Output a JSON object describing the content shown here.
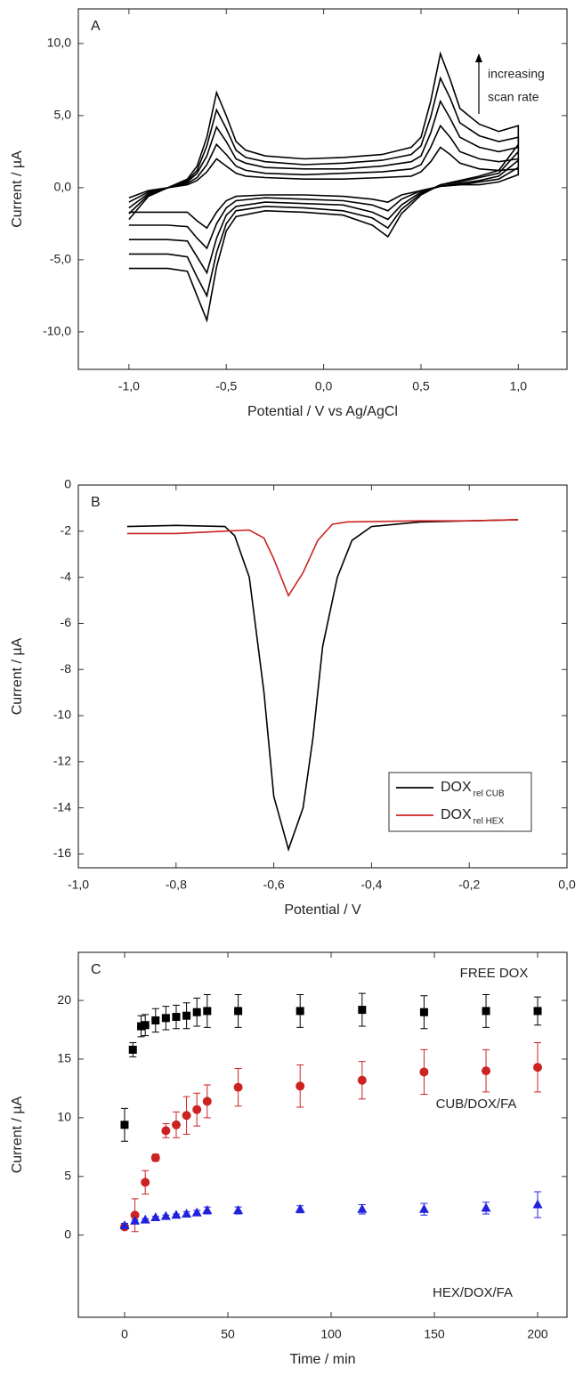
{
  "chart_data": [
    {
      "type": "line",
      "label": "A",
      "xlabel": "Potential / V vs Ag/AgCl",
      "ylabel": "Current / µA",
      "annotation": [
        "increasing",
        "scan rate"
      ],
      "xlim": [
        -1.26,
        1.25
      ],
      "ylim": [
        -12.6,
        12.4
      ],
      "xticks": [
        {
          "value": -1,
          "label": "-1,0"
        },
        {
          "value": -0.5,
          "label": "-0,5"
        },
        {
          "value": 0,
          "label": "0,0"
        },
        {
          "value": 0.5,
          "label": "0,5"
        },
        {
          "value": 1,
          "label": "1,0"
        }
      ],
      "yticks": [
        {
          "value": 10,
          "label": "10,0"
        },
        {
          "value": 5,
          "label": "5,0"
        },
        {
          "value": 0,
          "label": "0,0"
        },
        {
          "value": -5,
          "label": "-5,0"
        },
        {
          "value": -10,
          "label": "-10,0"
        }
      ],
      "x": [
        -1.0,
        -0.9,
        -0.8,
        -0.7,
        -0.65,
        -0.6,
        -0.55,
        -0.5,
        -0.45,
        -0.4,
        -0.3,
        -0.1,
        0.1,
        0.3,
        0.45,
        0.5,
        0.55,
        0.6,
        0.65,
        0.7,
        0.8,
        0.9,
        1.0,
        1.0,
        0.9,
        0.8,
        0.7,
        0.6,
        0.5,
        0.4,
        0.33,
        0.25,
        0.1,
        -0.1,
        -0.3,
        -0.45,
        -0.5,
        -0.55,
        -0.6,
        -0.65,
        -0.7,
        -0.8,
        -0.9,
        -1.0
      ],
      "series": [
        {
          "color": "#000000",
          "values": [
            -2.2,
            -0.6,
            0.0,
            0.6,
            1.5,
            3.5,
            6.6,
            5.0,
            3.2,
            2.6,
            2.2,
            2.0,
            2.1,
            2.3,
            2.8,
            3.5,
            6.0,
            9.3,
            7.5,
            5.5,
            4.4,
            3.9,
            4.3,
            3.0,
            1.2,
            0.8,
            0.5,
            0.2,
            -0.5,
            -1.8,
            -3.4,
            -2.6,
            -1.9,
            -1.7,
            -1.6,
            -2.0,
            -3.0,
            -5.5,
            -9.2,
            -7.5,
            -5.8,
            -5.6,
            -5.6,
            -5.6
          ]
        },
        {
          "color": "#000000",
          "values": [
            -1.8,
            -0.5,
            0.0,
            0.5,
            1.2,
            2.9,
            5.4,
            4.1,
            2.6,
            2.1,
            1.8,
            1.6,
            1.7,
            1.9,
            2.3,
            2.9,
            4.9,
            7.6,
            6.2,
            4.5,
            3.6,
            3.2,
            3.5,
            2.5,
            1.0,
            0.7,
            0.4,
            0.2,
            -0.4,
            -1.5,
            -2.8,
            -2.1,
            -1.6,
            -1.4,
            -1.3,
            -1.6,
            -2.5,
            -4.5,
            -7.5,
            -6.2,
            -4.8,
            -4.6,
            -4.6,
            -4.6
          ]
        },
        {
          "color": "#000000",
          "values": [
            -1.4,
            -0.4,
            0.0,
            0.4,
            1.0,
            2.2,
            4.2,
            3.2,
            2.0,
            1.7,
            1.4,
            1.3,
            1.3,
            1.5,
            1.8,
            2.2,
            3.8,
            6.0,
            4.8,
            3.5,
            2.8,
            2.5,
            2.8,
            1.9,
            0.8,
            0.5,
            0.3,
            0.1,
            -0.3,
            -1.2,
            -2.2,
            -1.7,
            -1.2,
            -1.1,
            -1.0,
            -1.3,
            -1.9,
            -3.5,
            -5.9,
            -4.8,
            -3.7,
            -3.6,
            -3.6,
            -3.6
          ]
        },
        {
          "color": "#000000",
          "values": [
            -1.0,
            -0.3,
            0.0,
            0.3,
            0.7,
            1.6,
            3.0,
            2.3,
            1.5,
            1.2,
            1.0,
            0.9,
            1.0,
            1.1,
            1.3,
            1.6,
            2.8,
            4.3,
            3.5,
            2.5,
            2.0,
            1.8,
            2.0,
            1.4,
            0.6,
            0.4,
            0.2,
            0.1,
            -0.2,
            -0.8,
            -1.6,
            -1.2,
            -0.9,
            -0.8,
            -0.7,
            -0.9,
            -1.4,
            -2.5,
            -4.2,
            -3.5,
            -2.7,
            -2.6,
            -2.6,
            -2.6
          ]
        },
        {
          "color": "#000000",
          "values": [
            -0.7,
            -0.2,
            0.0,
            0.2,
            0.5,
            1.1,
            2.0,
            1.5,
            1.0,
            0.8,
            0.7,
            0.6,
            0.6,
            0.7,
            0.8,
            1.1,
            1.8,
            2.8,
            2.3,
            1.7,
            1.3,
            1.2,
            1.3,
            0.9,
            0.4,
            0.2,
            0.2,
            0.1,
            -0.2,
            -0.5,
            -1.0,
            -0.8,
            -0.6,
            -0.5,
            -0.5,
            -0.6,
            -0.9,
            -1.7,
            -2.8,
            -2.3,
            -1.7,
            -1.7,
            -1.7,
            -1.7
          ]
        }
      ]
    },
    {
      "type": "line",
      "label": "B",
      "xlabel": "Potential / V",
      "ylabel": "Current / µA",
      "legend": "lower right",
      "xlim": [
        -1,
        0
      ],
      "ylim": [
        -16.6,
        0
      ],
      "xticks": [
        {
          "value": -1,
          "label": "-1,0"
        },
        {
          "value": -0.8,
          "label": "-0,8"
        },
        {
          "value": -0.6,
          "label": "-0,6"
        },
        {
          "value": -0.4,
          "label": "-0,4"
        },
        {
          "value": -0.2,
          "label": "-0,2"
        },
        {
          "value": 0,
          "label": "0,0"
        }
      ],
      "yticks": [
        0,
        -2,
        -4,
        -6,
        -8,
        -10,
        -12,
        -14,
        -16
      ],
      "series": [
        {
          "name": "DOX",
          "name_sub": "rel CUB",
          "color": "#000000",
          "x": [
            -0.9,
            -0.8,
            -0.7,
            -0.68,
            -0.65,
            -0.62,
            -0.6,
            -0.57,
            -0.54,
            -0.52,
            -0.5,
            -0.47,
            -0.44,
            -0.4,
            -0.3,
            -0.2,
            -0.1
          ],
          "values": [
            -1.8,
            -1.75,
            -1.8,
            -2.2,
            -4.0,
            -9.0,
            -13.5,
            -15.8,
            -14.0,
            -11.0,
            -7.0,
            -4.0,
            -2.4,
            -1.8,
            -1.6,
            -1.55,
            -1.5
          ]
        },
        {
          "name": "DOX",
          "name_sub": "rel HEX",
          "color": "#cc2222",
          "x": [
            -0.9,
            -0.8,
            -0.7,
            -0.65,
            -0.62,
            -0.6,
            -0.57,
            -0.54,
            -0.51,
            -0.48,
            -0.45,
            -0.3,
            -0.2,
            -0.1
          ],
          "values": [
            -2.1,
            -2.1,
            -2.0,
            -1.95,
            -2.3,
            -3.2,
            -4.8,
            -3.8,
            -2.4,
            -1.7,
            -1.6,
            -1.55,
            -1.55,
            -1.5
          ]
        }
      ]
    },
    {
      "type": "scatter",
      "label": "C",
      "xlabel": "Time / min",
      "ylabel": "Current / µA",
      "xlim": [
        -22.4,
        214.2
      ],
      "ylim": [
        -7,
        24.1
      ],
      "xticks": [
        0,
        50,
        100,
        150,
        200
      ],
      "yticks": [
        0,
        5,
        10,
        15,
        20
      ],
      "series": [
        {
          "name": "FREE DOX",
          "color": "#000000",
          "marker": "square",
          "x": [
            0,
            4,
            8,
            10,
            15,
            20,
            25,
            30,
            35,
            40,
            55,
            85,
            115,
            145,
            175,
            200
          ],
          "values": [
            9.4,
            15.8,
            17.8,
            17.9,
            18.3,
            18.5,
            18.6,
            18.7,
            19.0,
            19.1,
            19.1,
            19.1,
            19.2,
            19.0,
            19.1,
            19.1
          ],
          "errors": [
            1.4,
            0.6,
            0.9,
            0.9,
            1.0,
            1.0,
            1.0,
            1.1,
            1.2,
            1.4,
            1.4,
            1.4,
            1.4,
            1.4,
            1.4,
            1.2
          ]
        },
        {
          "name": "CUB/DOX/FA",
          "color": "#cc2222",
          "marker": "circle",
          "x": [
            0,
            5,
            10,
            15,
            20,
            25,
            30,
            35,
            40,
            55,
            85,
            115,
            145,
            175,
            200
          ],
          "values": [
            0.7,
            1.7,
            4.5,
            6.6,
            8.9,
            9.4,
            10.2,
            10.7,
            11.4,
            12.6,
            12.7,
            13.2,
            13.9,
            14.0,
            14.3
          ],
          "errors": [
            0.2,
            1.4,
            1.0,
            0.3,
            0.6,
            1.1,
            1.6,
            1.4,
            1.4,
            1.6,
            1.8,
            1.6,
            1.9,
            1.8,
            2.1
          ]
        },
        {
          "name": "HEX/DOX/FA",
          "color": "#2222dd",
          "marker": "triangle",
          "x": [
            0,
            5,
            10,
            15,
            20,
            25,
            30,
            35,
            40,
            55,
            85,
            115,
            145,
            175,
            200
          ],
          "values": [
            0.8,
            1.2,
            1.3,
            1.5,
            1.6,
            1.7,
            1.8,
            1.9,
            2.1,
            2.1,
            2.2,
            2.2,
            2.2,
            2.3,
            2.6
          ],
          "errors": [
            0.2,
            0.1,
            0.1,
            0.1,
            0.1,
            0.1,
            0.2,
            0.2,
            0.3,
            0.3,
            0.3,
            0.4,
            0.5,
            0.5,
            1.1
          ]
        }
      ]
    }
  ]
}
